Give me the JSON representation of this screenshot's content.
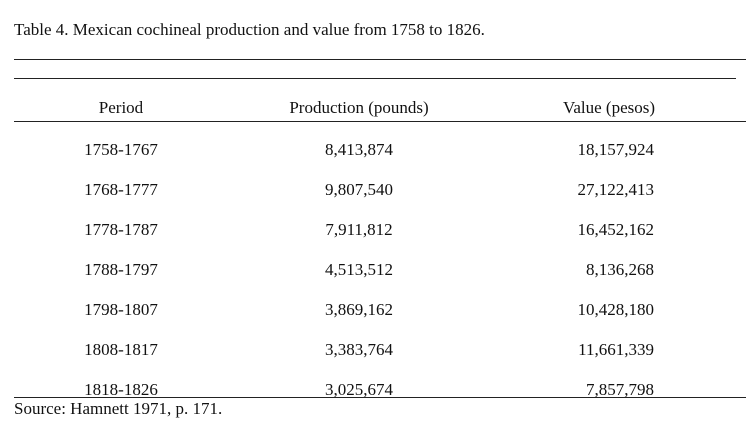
{
  "table": {
    "caption": "Table 4.  Mexican cochineal production and value from 1758 to 1826.",
    "headers": {
      "period": "Period",
      "production": "Production (pounds)",
      "value": "Value (pesos)"
    },
    "rows": [
      {
        "period": "1758-1767",
        "production": "8,413,874",
        "value": "18,157,924"
      },
      {
        "period": "1768-1777",
        "production": "9,807,540",
        "value": "27,122,413"
      },
      {
        "period": "1778-1787",
        "production": "7,911,812",
        "value": "16,452,162"
      },
      {
        "period": "1788-1797",
        "production": "4,513,512",
        "value": "8,136,268"
      },
      {
        "period": "1798-1807",
        "production": "3,869,162",
        "value": "10,428,180"
      },
      {
        "period": "1808-1817",
        "production": "3,383,764",
        "value": "11,661,339"
      },
      {
        "period": "1818-1826",
        "production": "3,025,674",
        "value": "7,857,798"
      }
    ],
    "source": "Source:  Hamnett 1971, p. 171."
  }
}
